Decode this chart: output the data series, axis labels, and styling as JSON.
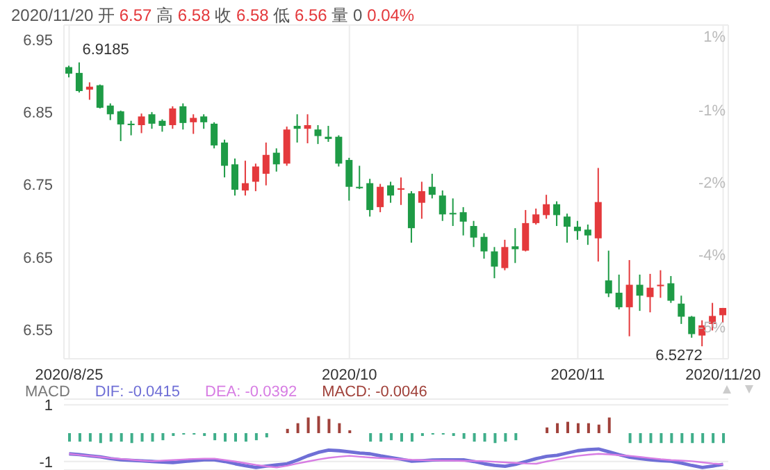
{
  "chart_data": [
    {
      "type": "candlestick",
      "title": "2020/11/20 开 6.57 高 6.58 收 6.58 低 6.56 量 0 0.04%",
      "categories": [
        "2020/8/25",
        null,
        null,
        null,
        null,
        null,
        null,
        null,
        null,
        null,
        null,
        null,
        null,
        null,
        null,
        null,
        null,
        null,
        null,
        null,
        null,
        null,
        null,
        null,
        null,
        null,
        null,
        "2020/10",
        null,
        null,
        null,
        null,
        null,
        null,
        null,
        null,
        null,
        null,
        null,
        null,
        null,
        null,
        null,
        null,
        null,
        null,
        null,
        null,
        null,
        "2020/11",
        null,
        null,
        null,
        null,
        null,
        null,
        null,
        null,
        null,
        null,
        null,
        null,
        null,
        "2020/11/20"
      ],
      "ohlc": [
        [
          6.912,
          6.914,
          6.898,
          6.903
        ],
        [
          6.904,
          6.9185,
          6.877,
          6.879
        ],
        [
          6.881,
          6.891,
          6.867,
          6.885
        ],
        [
          6.887,
          6.888,
          6.855,
          6.856
        ],
        [
          6.859,
          6.862,
          6.839,
          6.847
        ],
        [
          6.851,
          6.852,
          6.81,
          6.833
        ],
        [
          6.834,
          6.838,
          6.818,
          6.832
        ],
        [
          6.832,
          6.848,
          6.821,
          6.844
        ],
        [
          6.847,
          6.85,
          6.827,
          6.834
        ],
        [
          6.838,
          6.84,
          6.823,
          6.831
        ],
        [
          6.832,
          6.858,
          6.827,
          6.855
        ],
        [
          6.858,
          6.862,
          6.826,
          6.835
        ],
        [
          6.836,
          6.847,
          6.82,
          6.842
        ],
        [
          6.844,
          6.847,
          6.827,
          6.836
        ],
        [
          6.834,
          6.836,
          6.8,
          6.804
        ],
        [
          6.808,
          6.812,
          6.76,
          6.776
        ],
        [
          6.778,
          6.786,
          6.735,
          6.743
        ],
        [
          6.742,
          6.783,
          6.735,
          6.752
        ],
        [
          6.754,
          6.779,
          6.741,
          6.775
        ],
        [
          6.765,
          6.808,
          6.749,
          6.791
        ],
        [
          6.794,
          6.8,
          6.768,
          6.778
        ],
        [
          6.779,
          6.83,
          6.776,
          6.826
        ],
        [
          6.831,
          6.847,
          6.808,
          6.827
        ],
        [
          6.827,
          6.847,
          6.807,
          6.832
        ],
        [
          6.826,
          6.832,
          6.806,
          6.817
        ],
        [
          6.816,
          6.831,
          6.809,
          6.813
        ],
        [
          6.816,
          6.818,
          6.775,
          6.779
        ],
        [
          6.784,
          6.787,
          6.728,
          6.747
        ],
        [
          6.747,
          6.776,
          6.744,
          6.745
        ],
        [
          6.752,
          6.758,
          6.706,
          6.715
        ],
        [
          6.719,
          6.751,
          6.712,
          6.747
        ],
        [
          6.749,
          6.754,
          6.725,
          6.735
        ],
        [
          6.743,
          6.76,
          6.722,
          6.745
        ],
        [
          6.738,
          6.741,
          6.67,
          6.69
        ],
        [
          6.725,
          6.754,
          6.703,
          6.741
        ],
        [
          6.747,
          6.765,
          6.731,
          6.736
        ],
        [
          6.735,
          6.742,
          6.7,
          6.709
        ],
        [
          6.711,
          6.731,
          6.693,
          6.709
        ],
        [
          6.712,
          6.719,
          6.68,
          6.699
        ],
        [
          6.693,
          6.7,
          6.664,
          6.677
        ],
        [
          6.678,
          6.683,
          6.648,
          6.658
        ],
        [
          6.658,
          6.664,
          6.621,
          6.637
        ],
        [
          6.635,
          6.674,
          6.632,
          6.664
        ],
        [
          6.665,
          6.69,
          6.642,
          6.661
        ],
        [
          6.659,
          6.715,
          6.658,
          6.697
        ],
        [
          6.697,
          6.717,
          6.695,
          6.709
        ],
        [
          6.708,
          6.736,
          6.703,
          6.723
        ],
        [
          6.723,
          6.727,
          6.693,
          6.708
        ],
        [
          6.706,
          6.71,
          6.67,
          6.692
        ],
        [
          6.692,
          6.7,
          6.674,
          6.686
        ],
        [
          6.688,
          6.695,
          6.667,
          6.68
        ],
        [
          6.676,
          6.773,
          6.644,
          6.726
        ],
        [
          6.618,
          6.659,
          6.595,
          6.6
        ],
        [
          6.601,
          6.626,
          6.578,
          6.581
        ],
        [
          6.581,
          6.646,
          6.541,
          6.612
        ],
        [
          6.612,
          6.626,
          6.576,
          6.597
        ],
        [
          6.595,
          6.627,
          6.574,
          6.608
        ],
        [
          6.61,
          6.632,
          6.594,
          6.612
        ],
        [
          6.614,
          6.624,
          6.587,
          6.59
        ],
        [
          6.586,
          6.597,
          6.558,
          6.568
        ],
        [
          6.568,
          6.569,
          6.539,
          6.544
        ],
        [
          6.542,
          6.563,
          6.5272,
          6.556
        ],
        [
          6.558,
          6.587,
          6.549,
          6.569
        ],
        [
          6.57,
          6.58,
          6.56,
          6.58
        ]
      ],
      "colors": [
        "#1e9b46",
        "#1e9b46",
        "#e4393c",
        "#1e9b46",
        "#1e9b46",
        "#1e9b46",
        "#1e9b46",
        "#e4393c",
        "#1e9b46",
        "#1e9b46",
        "#e4393c",
        "#1e9b46",
        "#e4393c",
        "#1e9b46",
        "#1e9b46",
        "#1e9b46",
        "#1e9b46",
        "#e4393c",
        "#e4393c",
        "#e4393c",
        "#1e9b46",
        "#e4393c",
        "#1e9b46",
        "#e4393c",
        "#1e9b46",
        "#1e9b46",
        "#1e9b46",
        "#1e9b46",
        "#1e9b46",
        "#1e9b46",
        "#e4393c",
        "#1e9b46",
        "#e4393c",
        "#1e9b46",
        "#e4393c",
        "#1e9b46",
        "#1e9b46",
        "#1e9b46",
        "#1e9b46",
        "#1e9b46",
        "#1e9b46",
        "#1e9b46",
        "#e4393c",
        "#1e9b46",
        "#e4393c",
        "#e4393c",
        "#e4393c",
        "#1e9b46",
        "#1e9b46",
        "#1e9b46",
        "#1e9b46",
        "#e4393c",
        "#1e9b46",
        "#1e9b46",
        "#e4393c",
        "#1e9b46",
        "#e4393c",
        "#e4393c",
        "#1e9b46",
        "#1e9b46",
        "#1e9b46",
        "#e4393c",
        "#e4393c",
        "#e4393c"
      ],
      "ylim": [
        6.51,
        6.97
      ],
      "yticks": [
        6.55,
        6.65,
        6.75,
        6.85,
        6.95
      ],
      "annotations": [
        "6.9185",
        "6.5272",
        "1%",
        "-1%",
        "-2%",
        "-4%",
        "-5%"
      ],
      "grid": true
    },
    {
      "type": "bar",
      "title": "MACD",
      "categories": [
        null,
        null,
        null,
        null,
        null,
        null,
        null,
        null,
        null,
        null,
        null,
        null,
        null,
        null,
        null,
        null,
        null,
        null,
        null,
        null,
        null,
        null,
        null,
        null,
        null,
        null,
        null,
        null,
        null,
        null,
        null,
        null,
        null,
        null,
        null,
        null,
        null,
        null,
        null,
        null,
        null,
        null,
        null,
        null,
        null,
        null,
        null,
        null,
        null,
        null,
        null,
        null,
        null,
        null,
        null,
        null,
        null,
        null,
        null,
        null,
        null,
        null,
        null,
        null
      ],
      "series": [
        {
          "name": "DIF: -0.0415",
          "type": "line",
          "color": "#6f6fd6",
          "values": [
            -0.73,
            -0.76,
            -0.8,
            -0.84,
            -0.9,
            -0.94,
            -0.96,
            -0.98,
            -1.0,
            -1.02,
            -1.04,
            -1.0,
            -0.97,
            -0.94,
            -0.94,
            -1.0,
            -1.08,
            -1.15,
            -1.21,
            -1.16,
            -1.12,
            -1.08,
            -0.95,
            -0.8,
            -0.68,
            -0.6,
            -0.62,
            -0.66,
            -0.7,
            -0.73,
            -0.8,
            -0.86,
            -0.92,
            -0.99,
            -0.97,
            -0.95,
            -0.94,
            -0.94,
            -0.94,
            -1.0,
            -1.08,
            -1.14,
            -1.17,
            -1.1,
            -1.0,
            -0.9,
            -0.82,
            -0.78,
            -0.7,
            -0.62,
            -0.58,
            -0.56,
            -0.66,
            -0.76,
            -0.85,
            -0.9,
            -0.94,
            -0.97,
            -0.99,
            -1.06,
            -1.14,
            -1.21,
            -1.16,
            -1.1
          ]
        },
        {
          "name": "DEA: -0.0392",
          "type": "line",
          "color": "#d77de3",
          "values": [
            -0.73,
            -0.77,
            -0.8,
            -0.84,
            -0.88,
            -0.91,
            -0.94,
            -0.97,
            -0.99,
            -0.97,
            -0.95,
            -0.93,
            -0.91,
            -0.9,
            -0.9,
            -0.95,
            -1.0,
            -1.06,
            -1.12,
            -1.17,
            -1.21,
            -1.15,
            -1.07,
            -1.0,
            -0.93,
            -0.87,
            -0.83,
            -0.8,
            -0.83,
            -0.86,
            -0.88,
            -0.9,
            -0.92,
            -0.94,
            -0.95,
            -0.96,
            -0.97,
            -0.97,
            -0.98,
            -0.98,
            -0.99,
            -1.01,
            -1.03,
            -1.05,
            -1.07,
            -1.08,
            -1.0,
            -0.93,
            -0.86,
            -0.8,
            -0.76,
            -0.73,
            -0.75,
            -0.78,
            -0.8,
            -0.84,
            -0.88,
            -0.92,
            -0.95,
            -0.97,
            -0.99,
            -1.03,
            -1.07,
            -1.1
          ]
        },
        {
          "name": "MACD: -0.0046",
          "type": "bar",
          "color": "#a0413a",
          "colors": [
            "#3fae8a",
            "#3fae8a",
            "#3fae8a",
            "#3fae8a",
            "#3fae8a",
            "#3fae8a",
            "#3fae8a",
            "#3fae8a",
            "#3fae8a",
            "#3fae8a",
            "#3fae8a",
            "#3fae8a",
            "#3fae8a",
            "#3fae8a",
            "#3fae8a",
            "#3fae8a",
            "#3fae8a",
            "#3fae8a",
            "#3fae8a",
            "#3fae8a",
            null,
            "#a0413a",
            "#a0413a",
            "#a0413a",
            "#a0413a",
            "#a0413a",
            "#a0413a",
            "#a0413a",
            null,
            "#3fae8a",
            "#3fae8a",
            "#3fae8a",
            "#3fae8a",
            "#3fae8a",
            "#3fae8a",
            "#3fae8a",
            "#3fae8a",
            "#3fae8a",
            "#3fae8a",
            "#3fae8a",
            "#3fae8a",
            "#3fae8a",
            "#3fae8a",
            "#3fae8a",
            null,
            null,
            "#a0413a",
            "#a0413a",
            "#a0413a",
            "#a0413a",
            "#a0413a",
            "#a0413a",
            "#a0413a",
            null,
            "#3fae8a",
            "#3fae8a",
            "#3fae8a",
            "#3fae8a",
            "#3fae8a",
            "#3fae8a",
            "#3fae8a",
            "#3fae8a",
            "#3fae8a",
            "#3fae8a"
          ],
          "values": [
            -0.3,
            -0.3,
            -0.3,
            -0.35,
            -0.3,
            -0.3,
            -0.35,
            -0.3,
            -0.3,
            -0.25,
            -0.1,
            -0.05,
            -0.05,
            -0.1,
            -0.25,
            -0.3,
            -0.3,
            -0.3,
            -0.25,
            -0.15,
            null,
            0.15,
            0.35,
            0.55,
            0.6,
            0.5,
            0.35,
            0.1,
            null,
            -0.3,
            -0.3,
            -0.25,
            -0.3,
            -0.3,
            -0.1,
            -0.05,
            -0.05,
            -0.1,
            -0.2,
            -0.3,
            -0.3,
            -0.35,
            -0.3,
            -0.25,
            null,
            null,
            0.2,
            0.35,
            0.4,
            0.35,
            0.35,
            0.3,
            0.55,
            null,
            -0.35,
            -0.35,
            -0.35,
            -0.35,
            -0.35,
            -0.35,
            -0.35,
            -0.35,
            -0.35,
            -0.35
          ]
        }
      ],
      "ylim": [
        -1.3,
        1.2
      ],
      "yticks": [
        -1,
        1
      ],
      "tick_labels": "y",
      "grid": "y",
      "legend": "top left"
    }
  ]
}
